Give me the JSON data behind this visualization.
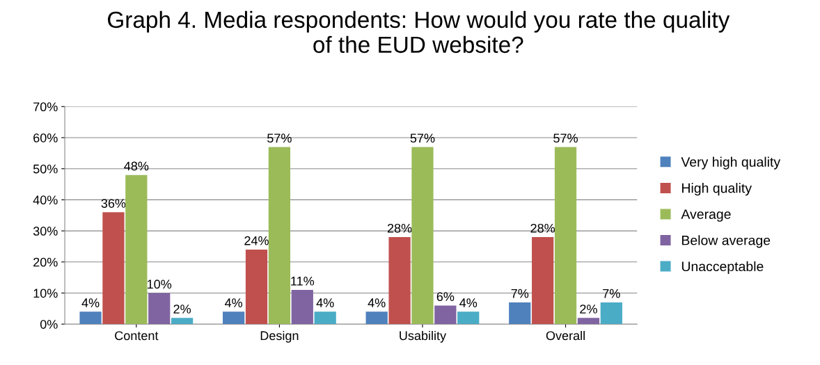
{
  "chart_data": {
    "type": "bar",
    "title": "Graph 4. Media respondents: How would you rate the quality of the EUD website?",
    "categories": [
      "Content",
      "Design",
      "Usability",
      "Overall"
    ],
    "series": [
      {
        "name": "Very high quality",
        "color": "#4f81bd",
        "values": [
          4,
          4,
          4,
          7
        ],
        "value_labels": [
          "4%",
          "4%",
          "4%",
          "7%"
        ]
      },
      {
        "name": "High quality",
        "color": "#c0504d",
        "values": [
          36,
          24,
          28,
          28
        ],
        "value_labels": [
          "36%",
          "24%",
          "28%",
          "28%"
        ]
      },
      {
        "name": "Average",
        "color": "#9bbb59",
        "values": [
          48,
          57,
          57,
          57
        ],
        "value_labels": [
          "48%",
          "57%",
          "57%",
          "57%"
        ]
      },
      {
        "name": "Below average",
        "color": "#8064a2",
        "values": [
          10,
          11,
          6,
          2
        ],
        "value_labels": [
          "10%",
          "11%",
          "6%",
          "2%"
        ]
      },
      {
        "name": "Unacceptable",
        "color": "#4bacc6",
        "values": [
          2,
          4,
          4,
          7
        ],
        "value_labels": [
          "2%",
          "4%",
          "4%",
          "7%"
        ]
      }
    ],
    "ylim": [
      0,
      70
    ],
    "yticks": [
      {
        "value": 0,
        "label": "0%"
      },
      {
        "value": 10,
        "label": "10%"
      },
      {
        "value": 20,
        "label": "20%"
      },
      {
        "value": 30,
        "label": "30%"
      },
      {
        "value": 40,
        "label": "40%"
      },
      {
        "value": 50,
        "label": "50%"
      },
      {
        "value": 60,
        "label": "60%"
      },
      {
        "value": 70,
        "label": "70%"
      }
    ],
    "grid": "y",
    "legend": "right"
  }
}
